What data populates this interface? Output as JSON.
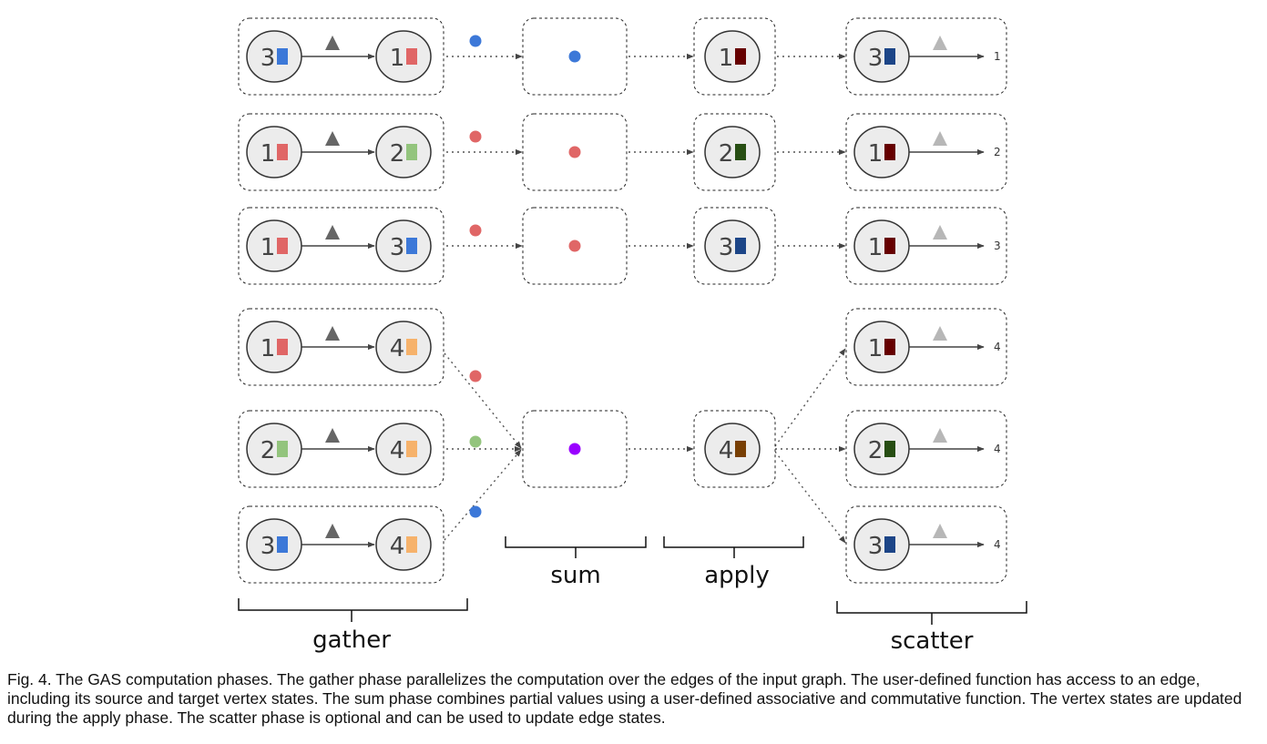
{
  "colors": {
    "vertex_1": "#e06666",
    "vertex_2": "#93c47d",
    "vertex_3": "#3c78d8",
    "vertex_4": "#f6b26b",
    "updated_1": "#660000",
    "updated_2": "#274e13",
    "updated_3": "#1c4587",
    "updated_4": "#783f04",
    "sum_4": "#9900ff",
    "gather_edge_marker": "#666666",
    "scatter_edge_marker": "#b7b7b7"
  },
  "gather": {
    "edges": [
      {
        "source": "3",
        "target": "1"
      },
      {
        "source": "1",
        "target": "2"
      },
      {
        "source": "1",
        "target": "3"
      },
      {
        "source": "1",
        "target": "4"
      },
      {
        "source": "2",
        "target": "4"
      },
      {
        "source": "3",
        "target": "4"
      }
    ]
  },
  "sum": {
    "targets": [
      "1",
      "2",
      "3",
      "4"
    ]
  },
  "apply": {
    "vertices": [
      "1",
      "2",
      "3",
      "4"
    ]
  },
  "scatter": {
    "edges": [
      {
        "source": "3",
        "target": "1"
      },
      {
        "source": "1",
        "target": "2"
      },
      {
        "source": "1",
        "target": "3"
      },
      {
        "source": "1",
        "target": "4"
      },
      {
        "source": "2",
        "target": "4"
      },
      {
        "source": "3",
        "target": "4"
      }
    ]
  },
  "labels": {
    "gather": "gather",
    "sum": "sum",
    "apply": "apply",
    "scatter": "scatter"
  },
  "caption": "Fig. 4. The GAS computation phases. The gather phase parallelizes the computation over the edges of the input graph. The user-defined function has access to an edge, including its source and target vertex states. The sum phase combines partial values using a user-defined associative and commutative function. The vertex states are updated during the apply phase. The scatter phase is optional and can be used to update edge states."
}
